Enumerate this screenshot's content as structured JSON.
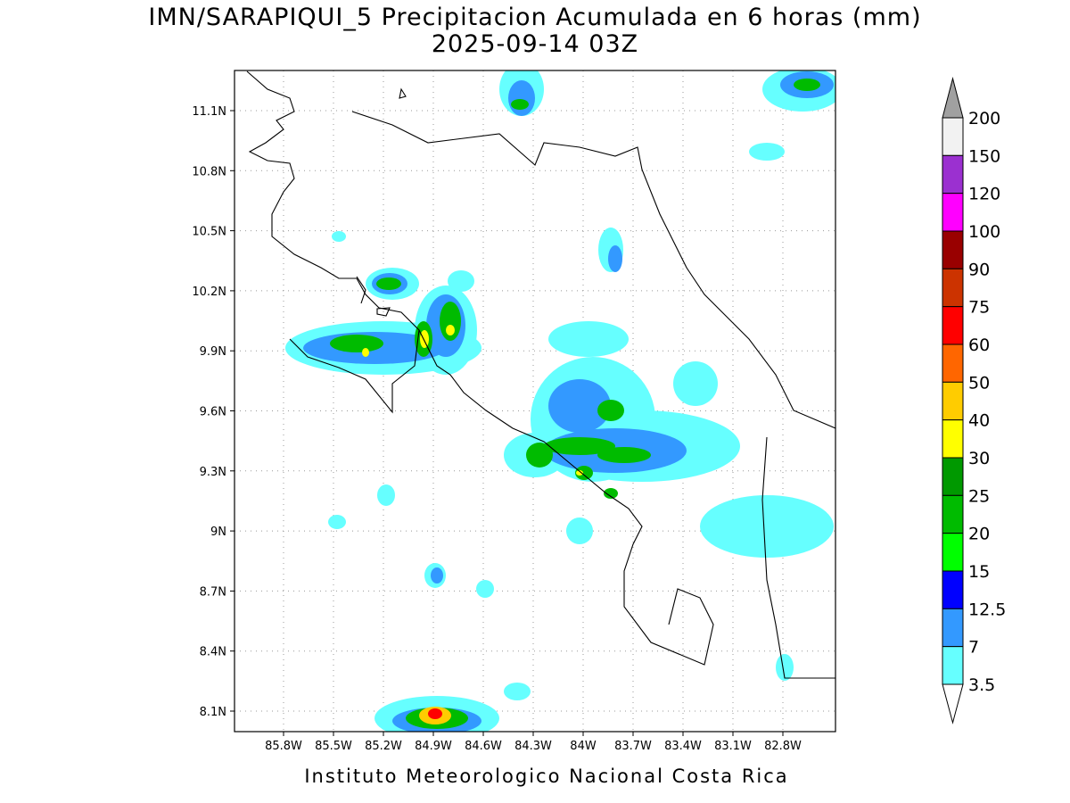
{
  "title": {
    "line1": "IMN/SARAPIQUI_5 Precipitacion Acumulada en 6 horas (mm)",
    "line2": "2025-09-14 03Z"
  },
  "map": {
    "lon_ticks": [
      "85.8W",
      "85.5W",
      "85.2W",
      "84.9W",
      "84.6W",
      "84.3W",
      "84W",
      "83.7W",
      "83.4W",
      "83.1W",
      "82.8W"
    ],
    "lat_ticks": [
      "11.1N",
      "10.8N",
      "10.5N",
      "10.2N",
      "9.9N",
      "9.6N",
      "9.3N",
      "9N",
      "8.7N",
      "8.4N",
      "8.1N"
    ]
  },
  "colorbar": {
    "labels": [
      "200",
      "150",
      "120",
      "100",
      "90",
      "75",
      "60",
      "50",
      "40",
      "30",
      "25",
      "20",
      "15",
      "12.5",
      "7",
      "3.5"
    ],
    "colors": [
      "#f2f2f2",
      "#9b30d0",
      "#ff00ff",
      "#990000",
      "#cc3300",
      "#ff0000",
      "#ff6600",
      "#ffcc00",
      "#ffff00",
      "#009900",
      "#00bb00",
      "#00ff00",
      "#0000ff",
      "#3399ff",
      "#66ffff"
    ],
    "over_color": "#a0a0a0",
    "under_color": "#ffffff"
  },
  "footer": "Instituto Meteorologico Nacional Costa Rica"
}
